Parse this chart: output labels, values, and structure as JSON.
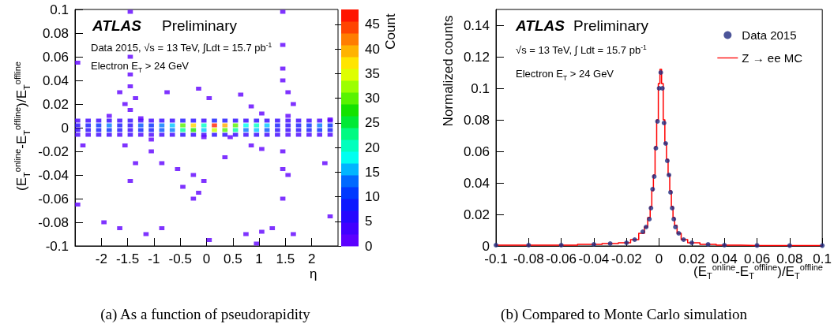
{
  "chart_data": [
    {
      "type": "scatter",
      "xlabel": "η",
      "ylabel": "(E$_{T}$$^{online}$-E$_{T}$$^{offline}$)/E$_{T}$$^{offline}$",
      "clabel": "Count",
      "marker": "square",
      "grid": false,
      "legend": false,
      "xlim": [
        -2.5,
        2.5
      ],
      "xticks": [
        -2,
        -1.5,
        -1,
        -0.5,
        0,
        0.5,
        1,
        1.5,
        2
      ],
      "ylim": [
        -0.1,
        0.1
      ],
      "yticks": [
        -0.1,
        -0.08,
        -0.06,
        -0.04,
        -0.02,
        0,
        0.02,
        0.04,
        0.06,
        0.08,
        0.1
      ],
      "clim": [
        0,
        48
      ],
      "cticks": [
        0,
        5,
        10,
        15,
        20,
        25,
        30,
        35,
        40,
        45
      ],
      "annotations": [
        "ATLAS",
        "Preliminary",
        "Data 2015, √s = 13 TeV, ∫Ldt = 15.7 pb$^{-1}$",
        "Electron E$_{T}$ > 24 GeV",
        "(a) As a function of pseudorapidity"
      ],
      "x": [
        -2.45,
        -2.25,
        -2.05,
        -1.85,
        -1.65,
        -1.45,
        -1.25,
        -1.05,
        -0.85,
        -0.65,
        -0.45,
        -0.25,
        -0.05,
        0.15,
        0.35,
        0.55,
        0.75,
        0.95,
        1.15,
        1.35,
        1.55,
        1.75,
        1.95,
        2.15,
        2.35,
        -2.45,
        -2.25,
        -2.05,
        -1.85,
        -1.65,
        -1.45,
        -1.25,
        -1.05,
        -0.85,
        -0.65,
        -0.45,
        -0.25,
        -0.05,
        0.15,
        0.35,
        0.55,
        0.75,
        0.95,
        1.15,
        1.35,
        1.55,
        1.75,
        1.95,
        2.15,
        2.35,
        -2.45,
        -2.25,
        -2.05,
        -1.85,
        -1.65,
        -1.45,
        -1.25,
        -1.05,
        -0.85,
        -0.65,
        -0.45,
        -0.25,
        -0.05,
        0.15,
        0.35,
        0.55,
        0.75,
        0.95,
        1.15,
        1.35,
        1.55,
        1.75,
        1.95,
        2.15,
        2.35,
        -2.45,
        -2.25,
        -2.05,
        -1.85,
        -1.65,
        -1.45,
        -1.25,
        -1.05,
        -0.85,
        -0.65,
        -0.45,
        -0.25,
        -0.05,
        0.15,
        0.35,
        0.55,
        0.75,
        0.95,
        1.15,
        1.35,
        1.55,
        1.75,
        1.95,
        2.15,
        2.35,
        -1.45,
        -1.45,
        -1.65,
        -1.35,
        -1.55,
        -1.45,
        -2.45,
        -1.85,
        -0.75,
        -0.15,
        0.05,
        0.65,
        0.85,
        1.05,
        1.45,
        1.45,
        1.55,
        1.65,
        1.55,
        1.45,
        1.45,
        -1.45,
        -1.45,
        -1.25,
        2.35,
        -1.55,
        -1.35,
        -1.45,
        -1.05,
        -0.85,
        -0.55,
        -0.25,
        -0.05,
        -0.15,
        -0.25,
        0.35,
        -0.45,
        0.85,
        1.05,
        1.45,
        1.45,
        1.45,
        1.55,
        2.25,
        -2.35,
        -1.95,
        -1.65,
        -1.15,
        -0.85,
        0.05,
        0.75,
        1.05,
        1.25,
        1.65,
        0.95,
        -2.45,
        2.35,
        -0.05,
        0.45,
        -1.05
      ],
      "values": [
        0.002,
        0.002,
        0.002,
        0.002,
        0.002,
        0.002,
        0.002,
        0.002,
        0.002,
        0.002,
        0.002,
        0.002,
        0.002,
        0.002,
        0.002,
        0.002,
        0.002,
        0.002,
        0.002,
        0.002,
        0.002,
        0.002,
        0.002,
        0.002,
        0.002,
        -0.002,
        -0.002,
        -0.002,
        -0.002,
        -0.002,
        -0.002,
        -0.002,
        -0.002,
        -0.002,
        -0.002,
        -0.002,
        -0.002,
        -0.002,
        -0.002,
        -0.002,
        -0.002,
        -0.002,
        -0.002,
        -0.002,
        -0.002,
        -0.002,
        -0.002,
        -0.002,
        -0.002,
        -0.002,
        0.006,
        0.006,
        0.006,
        0.006,
        0.006,
        0.006,
        0.006,
        0.006,
        0.006,
        0.006,
        0.006,
        0.006,
        0.006,
        0.006,
        0.006,
        0.006,
        0.006,
        0.006,
        0.006,
        0.006,
        0.006,
        0.006,
        0.006,
        0.006,
        0.006,
        -0.006,
        -0.006,
        -0.006,
        -0.006,
        -0.006,
        -0.006,
        -0.006,
        -0.006,
        -0.006,
        -0.006,
        -0.006,
        -0.006,
        -0.006,
        -0.006,
        -0.006,
        -0.006,
        -0.006,
        -0.006,
        -0.006,
        -0.006,
        -0.006,
        -0.006,
        -0.006,
        -0.006,
        -0.006,
        0.045,
        0.035,
        0.03,
        0.025,
        0.02,
        0.015,
        0.055,
        0.01,
        0.03,
        0.033,
        0.025,
        0.028,
        0.018,
        0.012,
        0.04,
        0.05,
        0.03,
        0.02,
        0.01,
        0.098,
        0.07,
        0.098,
        0.06,
        0.008,
        0.007,
        -0.015,
        -0.03,
        -0.045,
        -0.02,
        -0.03,
        -0.035,
        -0.04,
        -0.045,
        -0.055,
        -0.06,
        -0.025,
        -0.05,
        -0.015,
        -0.018,
        -0.02,
        -0.035,
        -0.06,
        -0.04,
        -0.03,
        -0.015,
        -0.08,
        -0.085,
        -0.09,
        -0.085,
        -0.095,
        -0.09,
        -0.088,
        -0.085,
        -0.09,
        -0.098,
        -0.065,
        -0.075,
        -0.008,
        -0.008,
        -0.01
      ],
      "cvalues": [
        6,
        8,
        10,
        14,
        8,
        6,
        12,
        10,
        14,
        16,
        30,
        38,
        20,
        46,
        40,
        30,
        18,
        20,
        16,
        8,
        6,
        8,
        10,
        14,
        10,
        5,
        6,
        8,
        10,
        7,
        5,
        9,
        8,
        12,
        14,
        22,
        28,
        16,
        34,
        30,
        22,
        14,
        16,
        12,
        6,
        5,
        6,
        8,
        10,
        8,
        3,
        4,
        4,
        5,
        4,
        5,
        4,
        4,
        5,
        5,
        7,
        6,
        5,
        8,
        7,
        6,
        5,
        6,
        5,
        5,
        4,
        4,
        4,
        3,
        3,
        3,
        3,
        4,
        4,
        3,
        4,
        3,
        3,
        4,
        4,
        6,
        5,
        4,
        6,
        6,
        5,
        4,
        5,
        4,
        4,
        3,
        3,
        3,
        3,
        3,
        1,
        1,
        1,
        1,
        1,
        1,
        1,
        1,
        1,
        1,
        1,
        1,
        1,
        1,
        1,
        1,
        1,
        1,
        1,
        1,
        1,
        1,
        1,
        1,
        1,
        1,
        1,
        1,
        1,
        1,
        1,
        1,
        1,
        1,
        1,
        1,
        1,
        1,
        1,
        1,
        1,
        1,
        1,
        1,
        1,
        1,
        1,
        1,
        1,
        1,
        1,
        1,
        1,
        1,
        1,
        1,
        1,
        1,
        1,
        1
      ]
    },
    {
      "type": "step",
      "xlabel": "(E$_{T}$$^{online}$-E$_{T}$$^{offline}$)/E$_{T}$$^{offline}$",
      "ylabel": "Normalized counts",
      "grid": false,
      "legend": "top right",
      "xlim": [
        -0.1,
        0.1
      ],
      "xticks": [
        -0.1,
        -0.08,
        -0.06,
        -0.04,
        -0.02,
        0,
        0.02,
        0.04,
        0.06,
        0.08,
        0.1
      ],
      "ylim": [
        0,
        0.15
      ],
      "yticks": [
        0,
        0.02,
        0.04,
        0.06,
        0.08,
        0.1,
        0.12,
        0.14
      ],
      "annotations": [
        "ATLAS",
        "Preliminary",
        "√s = 13 TeV, ∫ Ldt = 15.7 pb$^{-1}$",
        "Electron E$_{T}$ > 24 GeV",
        "(b) Compared to Monte Carlo simulation"
      ],
      "x": [
        -0.1,
        -0.08,
        -0.06,
        -0.04,
        -0.03,
        -0.02,
        -0.015,
        -0.01,
        -0.008,
        -0.006,
        -0.005,
        -0.004,
        -0.003,
        -0.002,
        -0.001,
        0,
        0.001,
        0.002,
        0.003,
        0.004,
        0.005,
        0.006,
        0.007,
        0.008,
        0.009,
        0.01,
        0.012,
        0.015,
        0.02,
        0.03,
        0.04,
        0.06,
        0.08,
        0.1
      ],
      "series": [
        {
          "name": "Data 2015",
          "type": "scatter",
          "marker": "circle",
          "color": "#1f2a80",
          "values": [
            0.0005,
            0.0005,
            0.0005,
            0.001,
            0.0015,
            0.002,
            0.004,
            0.009,
            0.012,
            0.017,
            0.024,
            0.036,
            0.044,
            0.062,
            0.079,
            0.1,
            0.11,
            0.1,
            0.078,
            0.065,
            0.054,
            0.045,
            0.034,
            0.024,
            0.017,
            0.012,
            0.008,
            0.004,
            0.002,
            0.001,
            0.0005,
            0.0003,
            0.0002,
            0.0002
          ]
        },
        {
          "name": "Z → ee MC",
          "type": "step",
          "color": "#ff0000",
          "values": [
            0.0005,
            0.0005,
            0.0005,
            0.001,
            0.0015,
            0.002,
            0.004,
            0.008,
            0.012,
            0.018,
            0.025,
            0.035,
            0.045,
            0.063,
            0.08,
            0.103,
            0.112,
            0.103,
            0.08,
            0.065,
            0.055,
            0.045,
            0.035,
            0.025,
            0.018,
            0.013,
            0.008,
            0.004,
            0.002,
            0.001,
            0.0005,
            0.0003,
            0.0002,
            0.0002
          ]
        }
      ]
    }
  ]
}
